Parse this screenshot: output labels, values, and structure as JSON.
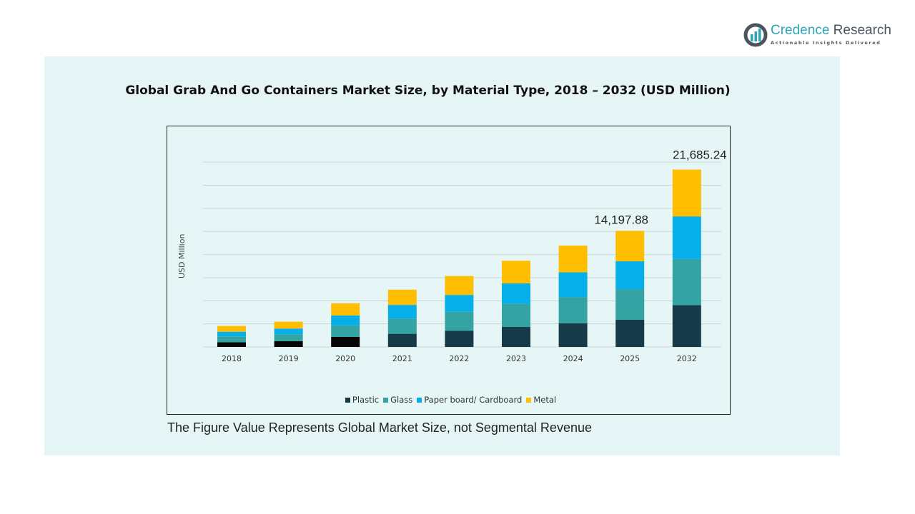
{
  "logo": {
    "name_part1": "Credence",
    "name_part2": " Research",
    "tagline": "Actionable Insights Delivered"
  },
  "footnote": "The Figure Value Represents Global Market Size, not Segmental Revenue",
  "chart_data": {
    "type": "bar",
    "stacked": true,
    "title": "Global Grab And Go Containers Market Size, by Material Type, 2018 – 2032 (USD Million)",
    "xlabel": "",
    "ylabel": "USD Million",
    "ylim": [
      0,
      24000
    ],
    "grid": true,
    "legend_position": "bottom",
    "categories": [
      "2018",
      "2019",
      "2020",
      "2021",
      "2022",
      "2023",
      "2024",
      "2025",
      "2032"
    ],
    "series": [
      {
        "name": "Plastic",
        "color": "#163b48",
        "values": [
          578,
          707,
          1221,
          1606,
          1991,
          2441,
          2891,
          3340,
          5118
        ]
      },
      {
        "name": "Glass",
        "color": "#33a3a3",
        "values": [
          707,
          835,
          1413,
          1863,
          2313,
          2827,
          3212,
          3726,
          5638
        ]
      },
      {
        "name": "Paper board/ Cardboard",
        "color": "#06aeea",
        "values": [
          578,
          707,
          1221,
          1670,
          2056,
          2505,
          3019,
          3405,
          5204
        ]
      },
      {
        "name": "Metal",
        "color": "#ffbe00",
        "values": [
          707,
          835,
          1478,
          1863,
          2313,
          2762,
          3276,
          3726,
          5725
        ]
      }
    ],
    "early_plastic_color": "#050505",
    "data_labels": [
      {
        "category": "2025",
        "text": "14,197.88"
      },
      {
        "category": "2032",
        "text": "21,685.24"
      }
    ]
  }
}
